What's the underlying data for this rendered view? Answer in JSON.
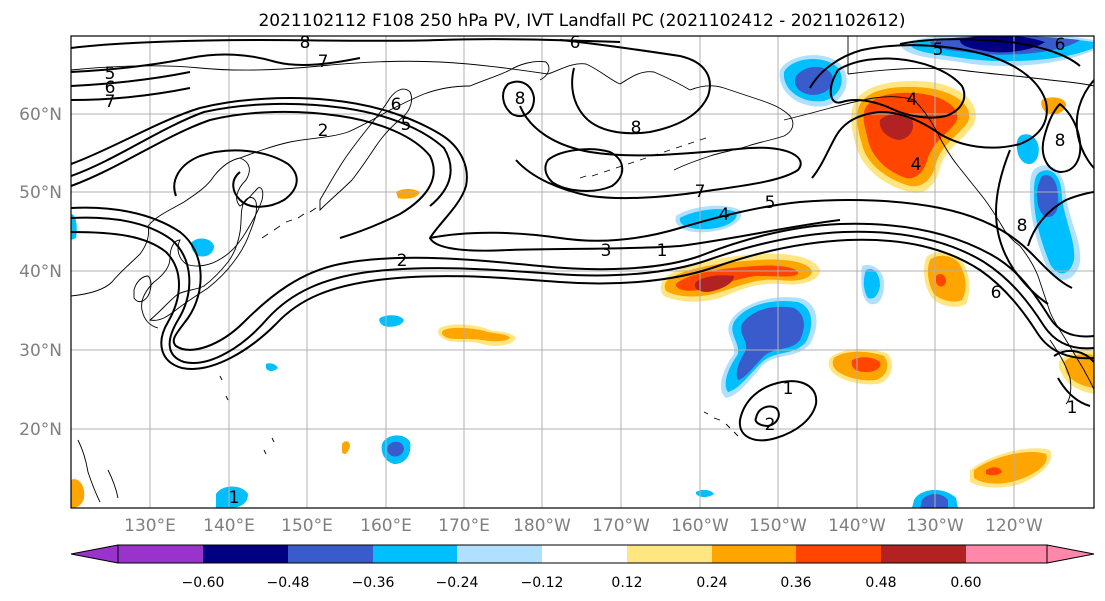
{
  "title": "2021102112 F108 250 hPa PV, IVT Landfall PC (2021102412 - 2021102612)",
  "lat_labels": [
    "60°N",
    "50°N",
    "40°N",
    "30°N",
    "20°N"
  ],
  "lon_labels": [
    "130°E",
    "140°E",
    "150°E",
    "160°E",
    "170°E",
    "180°W",
    "170°W",
    "160°W",
    "150°W",
    "140°W",
    "130°W",
    "120°W"
  ],
  "colorbar": {
    "ticks": [
      "−0.60",
      "−0.48",
      "−0.36",
      "−0.24",
      "−0.12",
      "0.12",
      "0.24",
      "0.36",
      "0.48",
      "0.60"
    ],
    "colors": [
      "#9933cc",
      "#000080",
      "#3a5bcc",
      "#00bfff",
      "#b0e0ff",
      "#ffffff",
      "#ffe680",
      "#ffa500",
      "#ff4500",
      "#b22222",
      "#ff88aa"
    ]
  },
  "contour_labels": [
    "8",
    "7",
    "6",
    "5",
    "6",
    "7",
    "2",
    "6",
    "5",
    "8",
    "8",
    "7",
    "5",
    "4",
    "3",
    "1",
    "2",
    "1",
    "2",
    "5",
    "4",
    "4",
    "6",
    "8",
    "8",
    "6",
    "1",
    "1"
  ],
  "fill_colors": {
    "light_blue": "#b0e0ff",
    "cyan": "#00bfff",
    "blue": "#3a5bcc",
    "navy": "#000080",
    "yellow": "#ffe680",
    "orange": "#ffa500",
    "red_orange": "#ff4500",
    "dark_red": "#b22222"
  }
}
